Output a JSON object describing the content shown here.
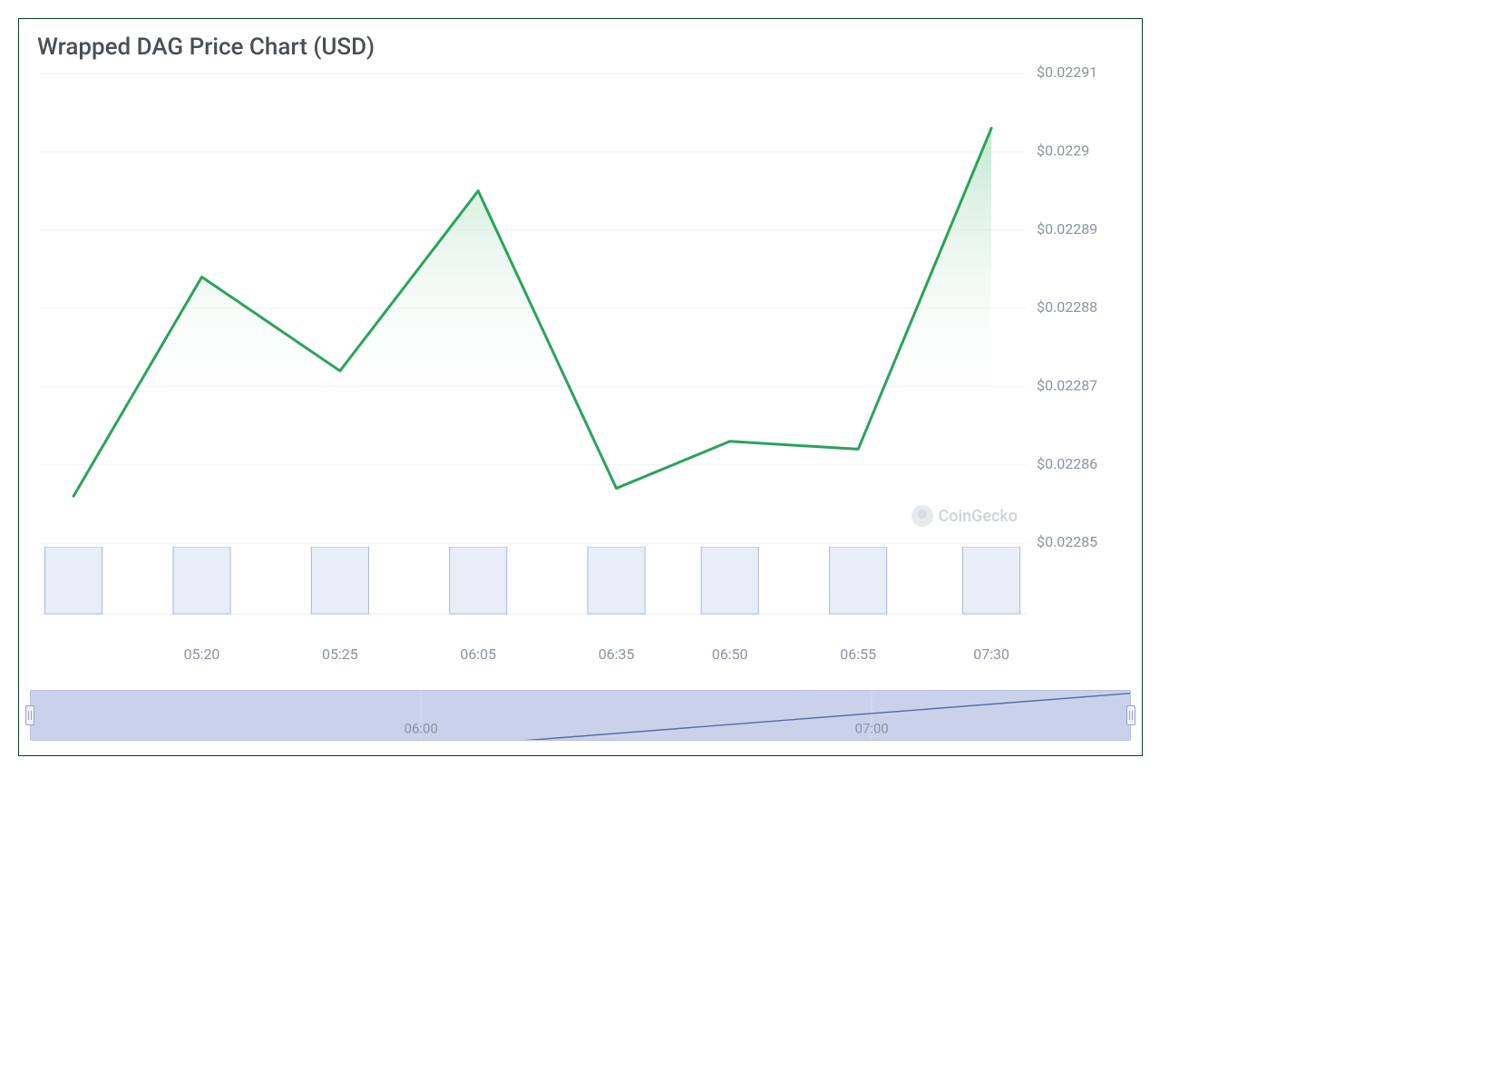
{
  "title": "Wrapped DAG Price Chart (USD)",
  "watermark": "CoinGecko",
  "price_chart": {
    "type": "area",
    "line_color": "#2aa35a",
    "line_width": 3,
    "area_gradient_top": "#b9e4c8",
    "area_gradient_bottom": "#ffffff",
    "grid_color": "#f0f2f5",
    "background_color": "#ffffff",
    "y_label_color": "#8a93a0",
    "y_label_fontsize": 16,
    "ylim": [
      0.02285,
      0.02291
    ],
    "y_ticks": [
      "$0.02285",
      "$0.02286",
      "$0.02287",
      "$0.02288",
      "$0.02289",
      "$0.0229",
      "$0.02291"
    ],
    "x_categories": [
      "05:20",
      "05:25",
      "06:05",
      "06:35",
      "06:50",
      "06:55",
      "07:30"
    ],
    "points": [
      {
        "x": 0.035,
        "y": 0.022856
      },
      {
        "x": 0.165,
        "y": 0.022884
      },
      {
        "x": 0.305,
        "y": 0.022872
      },
      {
        "x": 0.445,
        "y": 0.022895
      },
      {
        "x": 0.585,
        "y": 0.022857
      },
      {
        "x": 0.7,
        "y": 0.022863
      },
      {
        "x": 0.83,
        "y": 0.022862
      },
      {
        "x": 0.965,
        "y": 0.022903
      }
    ]
  },
  "volume_chart": {
    "type": "bar",
    "bar_fill": "#e8edf7",
    "bar_stroke": "#a8b8dc",
    "bar_width": 0.058,
    "baseline_color": "#e8ebf0",
    "x_label_color": "#8a93a0",
    "x_label_fontsize": 16,
    "bars_x": [
      0.035,
      0.165,
      0.305,
      0.445,
      0.585,
      0.7,
      0.83,
      0.965
    ],
    "bar_values": [
      1,
      1,
      1,
      1,
      1,
      1,
      1,
      1
    ],
    "x_labels": [
      {
        "x": 0.165,
        "text": "05:20"
      },
      {
        "x": 0.305,
        "text": "05:25"
      },
      {
        "x": 0.445,
        "text": "06:05"
      },
      {
        "x": 0.585,
        "text": "06:35"
      },
      {
        "x": 0.7,
        "text": "06:50"
      },
      {
        "x": 0.83,
        "text": "06:55"
      },
      {
        "x": 0.965,
        "text": "07:30"
      }
    ]
  },
  "navigator": {
    "background_color": "#c9d2ea",
    "border_color": "#b7c1dd",
    "line_color": "#5a6da3",
    "tick_color": "#d4dcee",
    "label_color": "#8a93a0",
    "points": [
      {
        "x": 0.0,
        "y": 1.1
      },
      {
        "x": 0.4,
        "y": 1.1
      },
      {
        "x": 1.0,
        "y": 0.05
      }
    ],
    "ticks": [
      {
        "x": 0.355,
        "label": "06:00"
      },
      {
        "x": 0.765,
        "label": "07:00"
      }
    ]
  }
}
